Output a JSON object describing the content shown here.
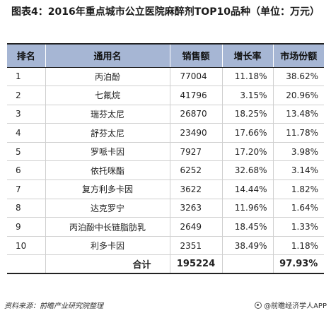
{
  "title": "图表4：2016年重点城市公立医院麻醉剂TOP10品种（单位：万元）",
  "table": {
    "headers": [
      "排名",
      "通用名",
      "销售额",
      "增长率",
      "市场份额"
    ],
    "rows": [
      {
        "rank": "1",
        "name": "丙泊酚",
        "sales": "77004",
        "growth": "11.18%",
        "share": "38.62%"
      },
      {
        "rank": "2",
        "name": "七氟烷",
        "sales": "41796",
        "growth": "3.15%",
        "share": "20.96%"
      },
      {
        "rank": "3",
        "name": "瑞芬太尼",
        "sales": "26870",
        "growth": "18.25%",
        "share": "13.48%"
      },
      {
        "rank": "4",
        "name": "舒芬太尼",
        "sales": "23490",
        "growth": "17.66%",
        "share": "11.78%"
      },
      {
        "rank": "5",
        "name": "罗哌卡因",
        "sales": "7927",
        "growth": "17.20%",
        "share": "3.98%"
      },
      {
        "rank": "6",
        "name": "依托咪酯",
        "sales": "6252",
        "growth": "32.68%",
        "share": "3.14%"
      },
      {
        "rank": "7",
        "name": "复方利多卡因",
        "sales": "3622",
        "growth": "14.44%",
        "share": "1.82%"
      },
      {
        "rank": "8",
        "name": "达克罗宁",
        "sales": "3263",
        "growth": "11.96%",
        "share": "1.64%"
      },
      {
        "rank": "9",
        "name": "丙泊酚中长链脂肪乳",
        "sales": "2649",
        "growth": "18.45%",
        "share": "1.33%"
      },
      {
        "rank": "10",
        "name": "利多卡因",
        "sales": "2351",
        "growth": "38.49%",
        "share": "1.18%"
      }
    ],
    "total": {
      "label": "合计",
      "sales": "195224",
      "share": "97.93%"
    }
  },
  "footer": {
    "source": "资料来源：前瞻产业研究院整理",
    "brand": "@前瞻经济学人APP",
    "brand_icon": "logo-circle-icon"
  },
  "colors": {
    "header_bg": "#a6b6d4",
    "rule": "#222222"
  }
}
